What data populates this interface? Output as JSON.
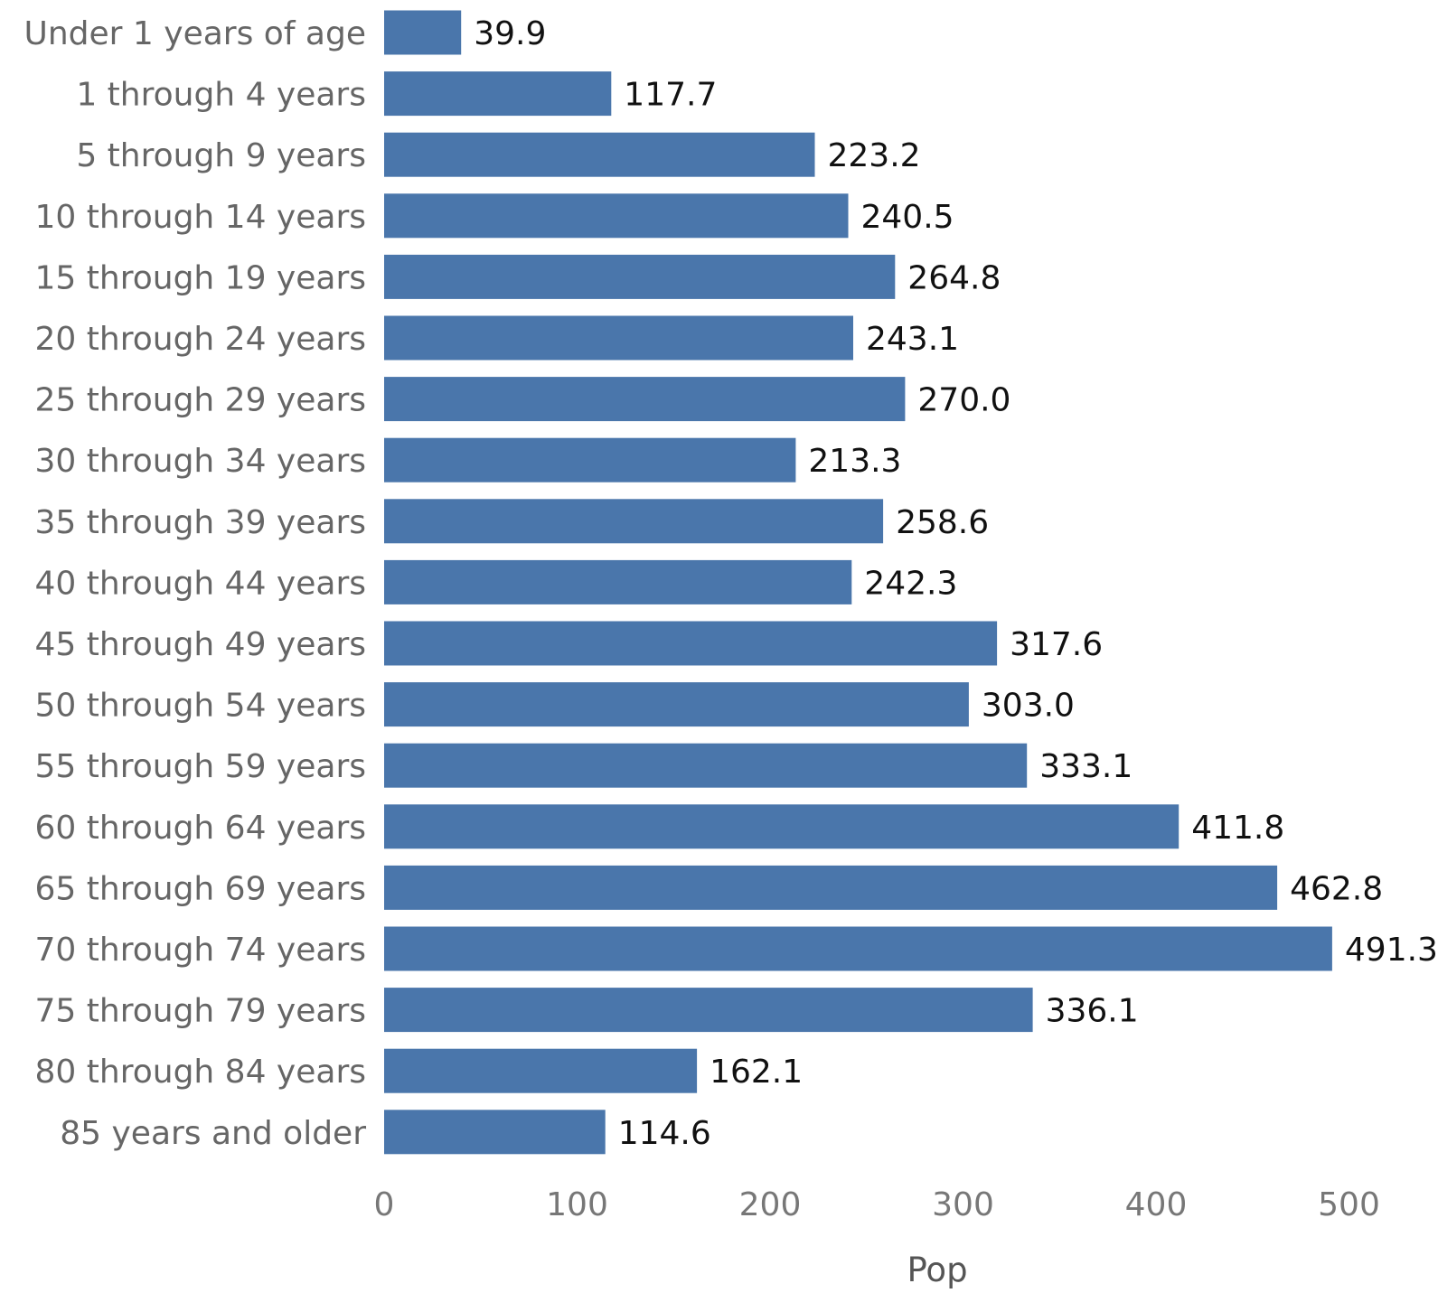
{
  "chart_data": {
    "type": "bar",
    "orientation": "horizontal",
    "categories": [
      "Under 1 years of age",
      "1 through 4 years",
      "5 through 9 years",
      "10 through 14 years",
      "15 through 19 years",
      "20 through 24 years",
      "25 through 29 years",
      "30 through 34 years",
      "35 through 39 years",
      "40 through 44 years",
      "45 through 49 years",
      "50 through 54 years",
      "55 through 59 years",
      "60 through 64 years",
      "65 through 69 years",
      "70 through 74 years",
      "75 through 79 years",
      "80 through 84 years",
      "85 years and older"
    ],
    "values": [
      39.9,
      117.7,
      223.2,
      240.5,
      264.8,
      243.1,
      270.0,
      213.3,
      258.6,
      242.3,
      317.6,
      303.0,
      333.1,
      411.8,
      462.8,
      491.3,
      336.1,
      162.1,
      114.6
    ],
    "value_labels": [
      "39.9",
      "117.7",
      "223.2",
      "240.5",
      "264.8",
      "243.1",
      "270.0",
      "213.3",
      "258.6",
      "242.3",
      "317.6",
      "303.0",
      "333.1",
      "411.8",
      "462.8",
      "491.3",
      "336.1",
      "162.1",
      "114.6"
    ],
    "xticks": [
      "0",
      "100",
      "200",
      "300",
      "400",
      "500"
    ],
    "xlabel": "Pop",
    "xlim": [
      0,
      540
    ],
    "grid": false,
    "legend": "none",
    "bar_color": "#4a76ab"
  }
}
